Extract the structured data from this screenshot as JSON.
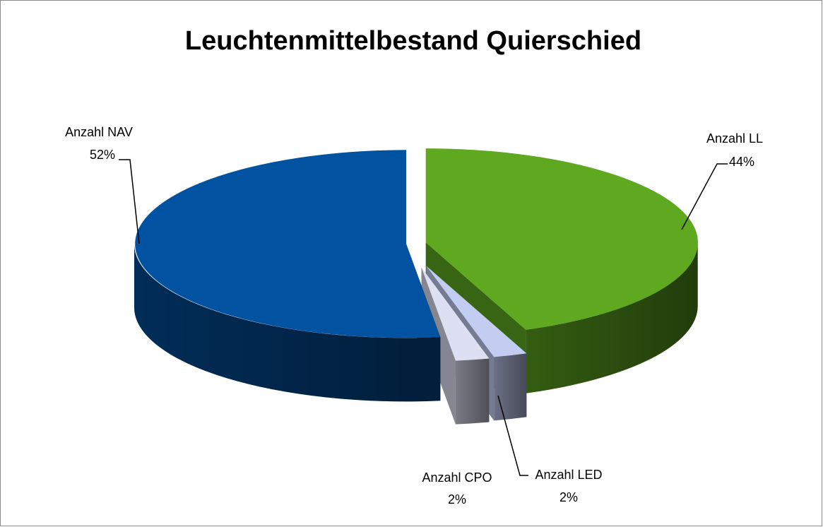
{
  "chart_data": {
    "type": "pie",
    "title": "Leuchtenmittelbestand Quierschied",
    "categories": [
      "Anzahl LL",
      "Anzahl LED",
      "Anzahl CPO",
      "Anzahl NAV"
    ],
    "values": [
      44,
      2,
      2,
      52
    ],
    "value_labels": [
      "44%",
      "2%",
      "2%",
      "52%"
    ],
    "colors": [
      "#5ea91f",
      "#c3cdf2",
      "#dde0f2",
      "#0152a0"
    ]
  }
}
